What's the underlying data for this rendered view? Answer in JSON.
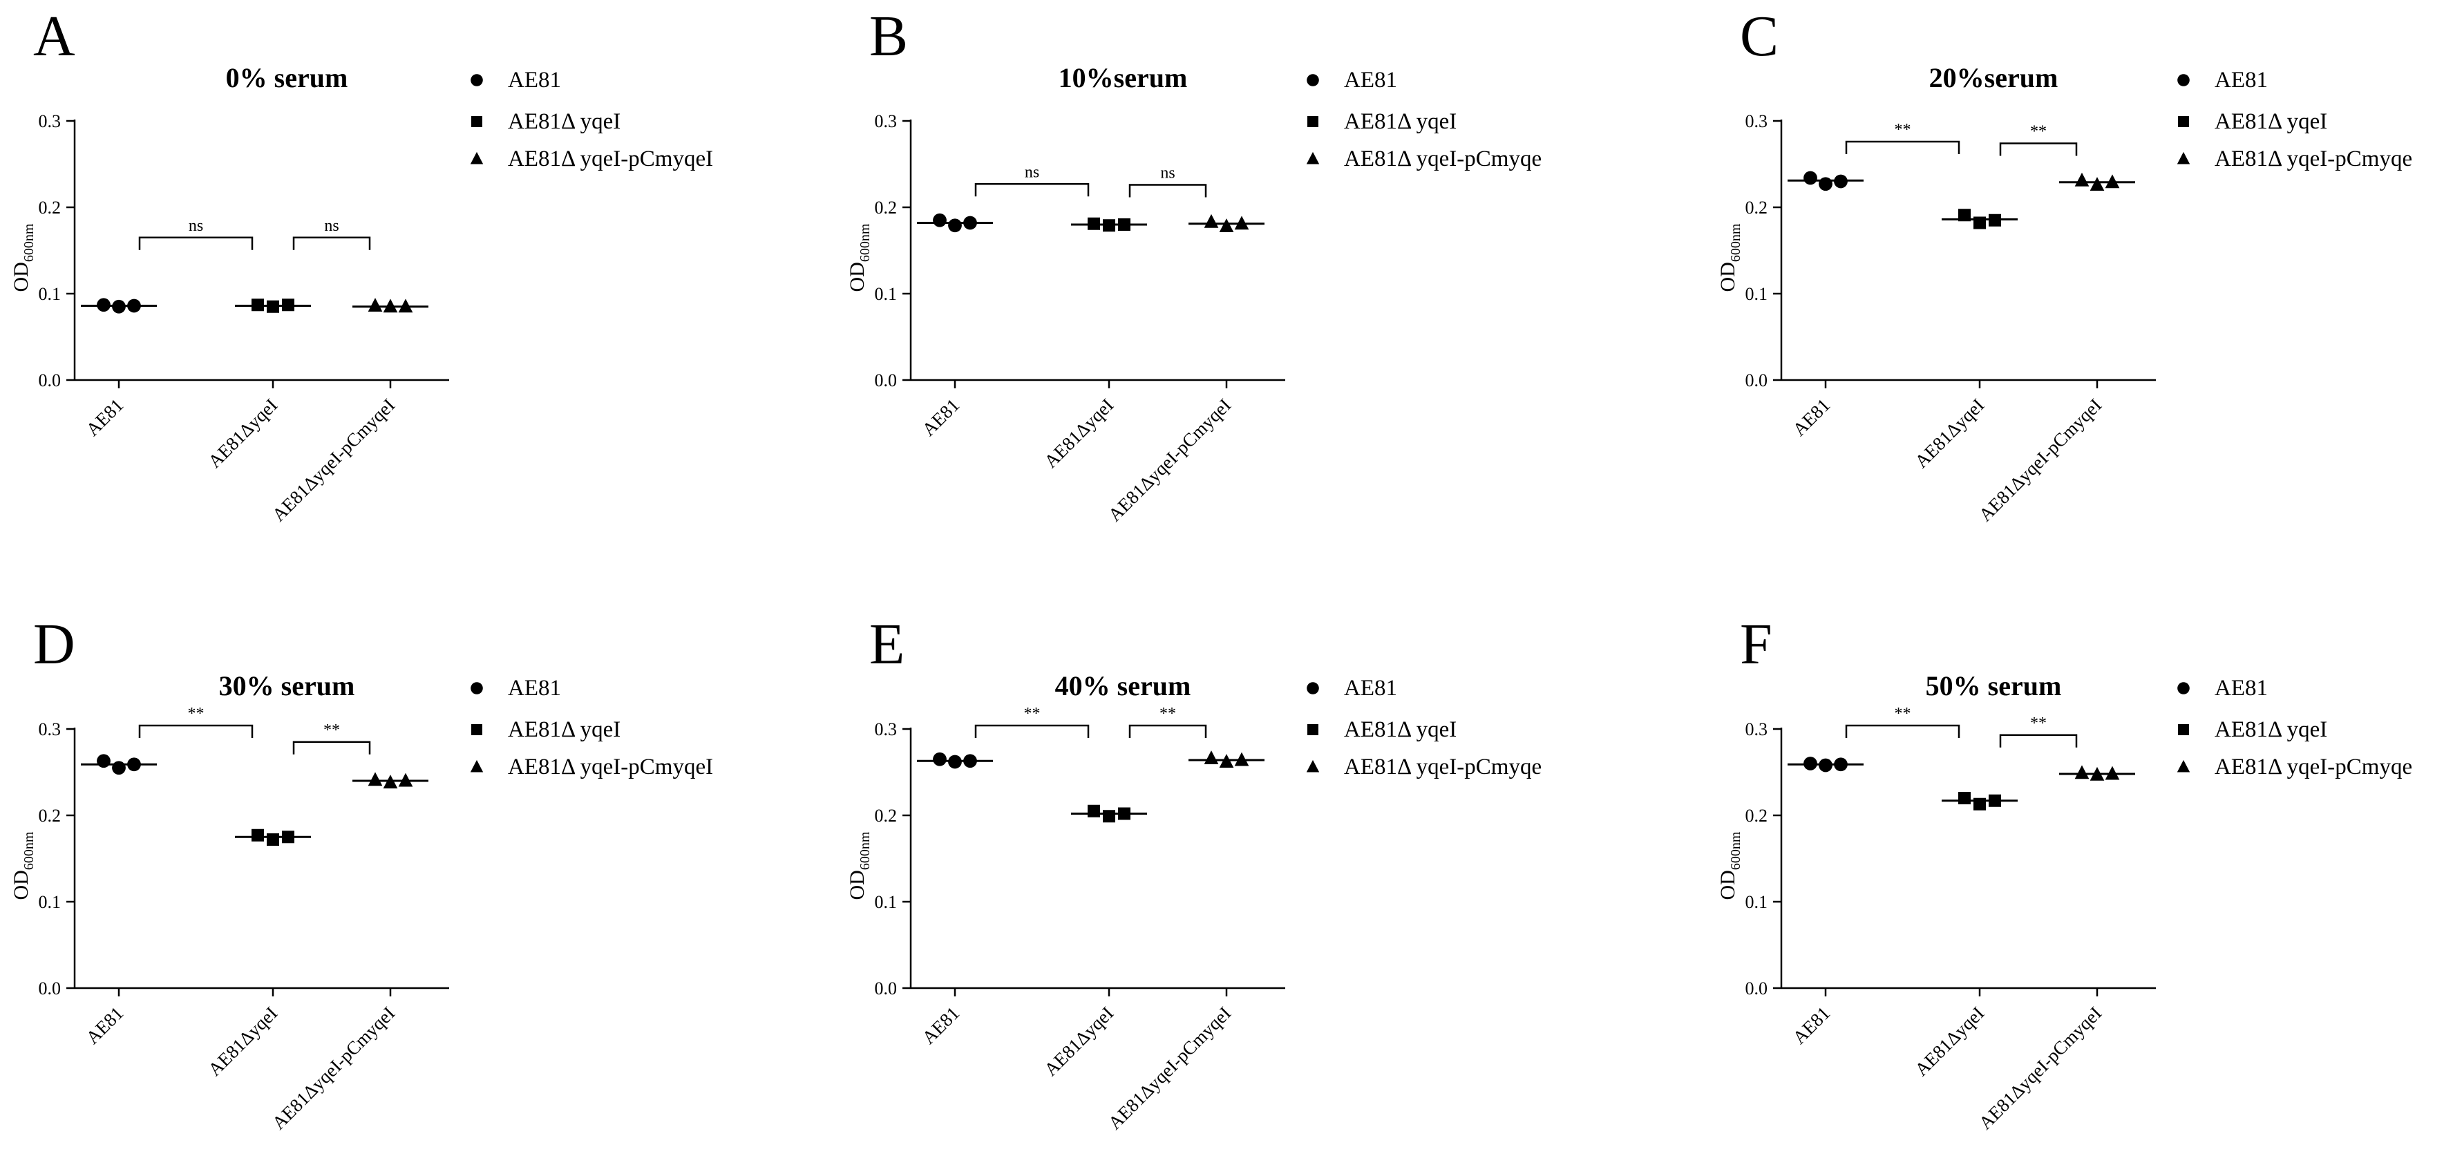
{
  "legend_labels": [
    [
      "AE81",
      "AE81Δ yqeI",
      "AE81Δ yqeI-pCmyqeI"
    ],
    [
      "AE81",
      "AE81Δ yqeI",
      "AE81Δ yqeI-pCmyqe"
    ],
    [
      "AE81",
      "AE81Δ yqeI",
      "AE81Δ yqeI-pCmyqe"
    ],
    [
      "AE81",
      "AE81Δ yqeI",
      "AE81Δ yqeI-pCmyqeI"
    ],
    [
      "AE81",
      "AE81Δ yqeI",
      "AE81Δ yqeI-pCmyqe"
    ],
    [
      "AE81",
      "AE81Δ yqeI",
      "AE81Δ yqeI-pCmyqe"
    ]
  ],
  "chart_data": [
    {
      "type": "scatter",
      "panel": "A",
      "title": "0% serum",
      "ylabel": "OD",
      "ylabel_subscript": "600nm",
      "ylim": [
        0,
        0.3
      ],
      "yticks": [
        "0.0",
        "0.1",
        "0.2",
        "0.3"
      ],
      "categories": [
        "AE81",
        "AE81ΔyqeI",
        "AE81ΔyqeI-pCmyqeI"
      ],
      "markers": [
        "circle",
        "square",
        "triangle"
      ],
      "points": [
        [
          0.087,
          0.085,
          0.086
        ],
        [
          0.087,
          0.085,
          0.087
        ],
        [
          0.086,
          0.085,
          0.085
        ]
      ],
      "means": [
        0.086,
        0.086,
        0.085
      ],
      "comparisons": [
        {
          "from": 0,
          "to": 1,
          "label": "ns"
        },
        {
          "from": 1,
          "to": 2,
          "label": "ns"
        }
      ]
    },
    {
      "type": "scatter",
      "panel": "B",
      "title": "10%serum",
      "ylabel": "OD",
      "ylabel_subscript": "600nm",
      "ylim": [
        0,
        0.3
      ],
      "yticks": [
        "0.0",
        "0.1",
        "0.2",
        "0.3"
      ],
      "categories": [
        "AE81",
        "AE81ΔyqeI",
        "AE81ΔyqeI-pCmyqeI"
      ],
      "markers": [
        "circle",
        "square",
        "triangle"
      ],
      "points": [
        [
          0.185,
          0.179,
          0.182
        ],
        [
          0.181,
          0.179,
          0.18
        ],
        [
          0.183,
          0.178,
          0.181
        ]
      ],
      "means": [
        0.182,
        0.18,
        0.181
      ],
      "comparisons": [
        {
          "from": 0,
          "to": 1,
          "label": "ns"
        },
        {
          "from": 1,
          "to": 2,
          "label": "ns"
        }
      ]
    },
    {
      "type": "scatter",
      "panel": "C",
      "title": "20%serum",
      "ylabel": "OD",
      "ylabel_subscript": "600nm",
      "ylim": [
        0,
        0.3
      ],
      "yticks": [
        "0.0",
        "0.1",
        "0.2",
        "0.3"
      ],
      "categories": [
        "AE81",
        "AE81ΔyqeI",
        "AE81ΔyqeI-pCmyqeI"
      ],
      "markers": [
        "circle",
        "square",
        "triangle"
      ],
      "points": [
        [
          0.234,
          0.227,
          0.23
        ],
        [
          0.191,
          0.182,
          0.185
        ],
        [
          0.231,
          0.226,
          0.229
        ]
      ],
      "means": [
        0.231,
        0.186,
        0.229
      ],
      "comparisons": [
        {
          "from": 0,
          "to": 1,
          "label": "**"
        },
        {
          "from": 1,
          "to": 2,
          "label": "**"
        }
      ]
    },
    {
      "type": "scatter",
      "panel": "D",
      "title": "30% serum",
      "ylabel": "OD",
      "ylabel_subscript": "600nm",
      "ylim": [
        0,
        0.3
      ],
      "yticks": [
        "0.0",
        "0.1",
        "0.2",
        "0.3"
      ],
      "categories": [
        "AE81",
        "AE81ΔyqeI",
        "AE81ΔyqeI-pCmyqeI"
      ],
      "markers": [
        "circle",
        "square",
        "triangle"
      ],
      "points": [
        [
          0.263,
          0.255,
          0.259
        ],
        [
          0.177,
          0.172,
          0.175
        ],
        [
          0.241,
          0.238,
          0.24
        ]
      ],
      "means": [
        0.259,
        0.175,
        0.24
      ],
      "comparisons": [
        {
          "from": 0,
          "to": 1,
          "label": "**"
        },
        {
          "from": 1,
          "to": 2,
          "label": "**"
        }
      ]
    },
    {
      "type": "scatter",
      "panel": "E",
      "title": "40% serum",
      "ylabel": "OD",
      "ylabel_subscript": "600nm",
      "ylim": [
        0,
        0.3
      ],
      "yticks": [
        "0.0",
        "0.1",
        "0.2",
        "0.3"
      ],
      "categories": [
        "AE81",
        "AE81ΔyqeI",
        "AE81ΔyqeI-pCmyqeI"
      ],
      "markers": [
        "circle",
        "square",
        "triangle"
      ],
      "points": [
        [
          0.265,
          0.262,
          0.263
        ],
        [
          0.205,
          0.199,
          0.202
        ],
        [
          0.266,
          0.262,
          0.264
        ]
      ],
      "means": [
        0.263,
        0.202,
        0.264
      ],
      "comparisons": [
        {
          "from": 0,
          "to": 1,
          "label": "**"
        },
        {
          "from": 1,
          "to": 2,
          "label": "**"
        }
      ]
    },
    {
      "type": "scatter",
      "panel": "F",
      "title": "50% serum",
      "ylabel": "OD",
      "ylabel_subscript": "600nm",
      "ylim": [
        0,
        0.3
      ],
      "yticks": [
        "0.0",
        "0.1",
        "0.2",
        "0.3"
      ],
      "categories": [
        "AE81",
        "AE81ΔyqeI",
        "AE81ΔyqeI-pCmyqeI"
      ],
      "markers": [
        "circle",
        "square",
        "triangle"
      ],
      "points": [
        [
          0.26,
          0.258,
          0.259
        ],
        [
          0.22,
          0.213,
          0.217
        ],
        [
          0.249,
          0.247,
          0.248
        ]
      ],
      "means": [
        0.259,
        0.217,
        0.248
      ],
      "comparisons": [
        {
          "from": 0,
          "to": 1,
          "label": "**"
        },
        {
          "from": 1,
          "to": 2,
          "label": "**"
        }
      ]
    }
  ]
}
